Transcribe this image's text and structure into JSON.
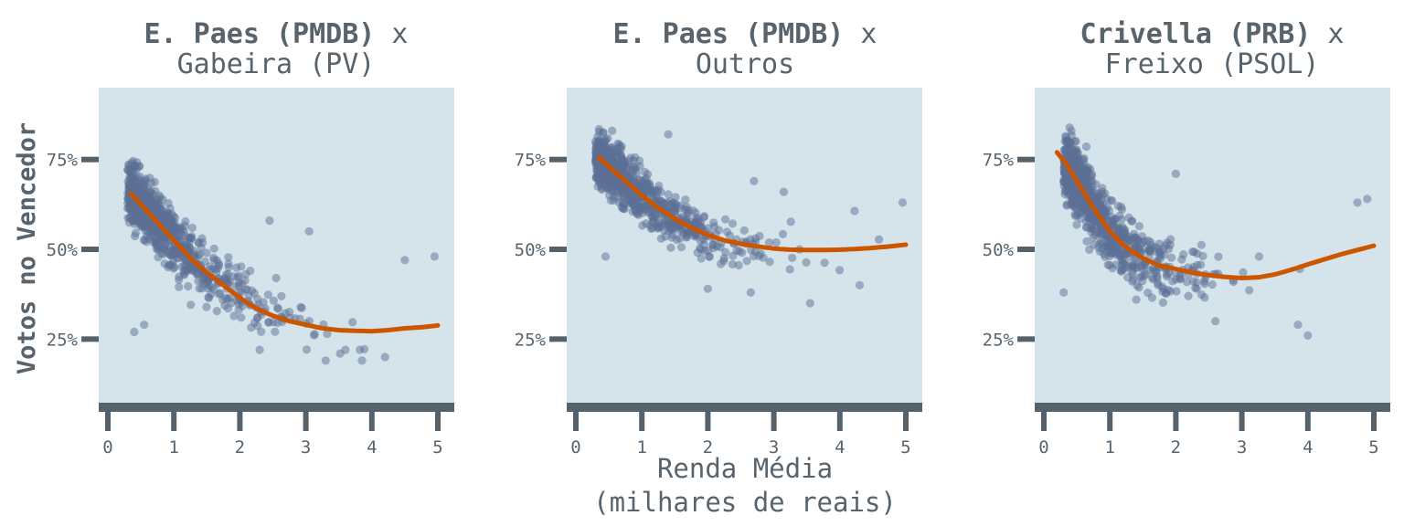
{
  "chart_data": [
    {
      "type": "scatter",
      "title": {
        "bold": "E. Paes (PMDB)",
        "normal": " x",
        "line2": "Gabeira (PV)"
      },
      "xlim": [
        0,
        5
      ],
      "ylim": [
        5,
        95
      ],
      "xticks": [
        "0",
        "1",
        "2",
        "3",
        "4",
        "5"
      ],
      "yticks": [
        "25%",
        "50%",
        "75%"
      ],
      "ytick_values": [
        25,
        50,
        75
      ],
      "trend": {
        "x": [
          0.35,
          0.5,
          0.75,
          1.0,
          1.25,
          1.5,
          1.75,
          2.0,
          2.25,
          2.5,
          2.75,
          3.0,
          3.25,
          3.5,
          3.75,
          4.0,
          4.25,
          4.5,
          4.75,
          5.0
        ],
        "y": [
          65.5,
          62.5,
          57.5,
          52.5,
          47.5,
          43.5,
          40.0,
          36.5,
          33.5,
          31.5,
          30.0,
          29.0,
          28.0,
          27.5,
          27.3,
          27.2,
          27.5,
          28.0,
          28.3,
          28.8
        ]
      },
      "cloud": {
        "seed": 11,
        "count": 850,
        "x0": 0.3,
        "xscale": 0.65,
        "xmax": 5.0,
        "spread": 5.5
      },
      "outliers": [
        [
          0.4,
          27
        ],
        [
          0.55,
          29
        ],
        [
          3.05,
          55
        ],
        [
          4.95,
          48
        ],
        [
          4.5,
          47
        ],
        [
          4.2,
          20
        ],
        [
          3.3,
          19
        ],
        [
          3.85,
          19
        ],
        [
          2.3,
          22
        ],
        [
          2.45,
          58
        ],
        [
          2.55,
          42
        ],
        [
          3.6,
          22
        ]
      ]
    },
    {
      "type": "scatter",
      "title": {
        "bold": "E. Paes (PMDB)",
        "normal": " x",
        "line2": "Outros"
      },
      "xlim": [
        0,
        5
      ],
      "ylim": [
        5,
        95
      ],
      "xticks": [
        "0",
        "1",
        "2",
        "3",
        "4",
        "5"
      ],
      "yticks": [
        "25%",
        "50%",
        "75%"
      ],
      "ytick_values": [
        25,
        50,
        75
      ],
      "trend": {
        "x": [
          0.35,
          0.5,
          0.75,
          1.0,
          1.25,
          1.5,
          1.75,
          2.0,
          2.25,
          2.5,
          2.75,
          3.0,
          3.25,
          3.5,
          3.75,
          4.0,
          4.25,
          4.5,
          4.75,
          5.0
        ],
        "y": [
          75.5,
          73.0,
          69.0,
          65.0,
          61.5,
          58.5,
          56.0,
          54.0,
          52.5,
          51.5,
          50.8,
          50.2,
          49.9,
          49.8,
          49.8,
          49.9,
          50.1,
          50.4,
          50.8,
          51.3
        ]
      },
      "cloud": {
        "seed": 23,
        "count": 850,
        "x0": 0.3,
        "xscale": 0.65,
        "xmax": 5.0,
        "spread": 5.0
      },
      "outliers": [
        [
          0.55,
          83
        ],
        [
          1.4,
          82
        ],
        [
          2.7,
          69
        ],
        [
          3.15,
          66
        ],
        [
          3.55,
          35
        ],
        [
          4.95,
          63
        ],
        [
          2.0,
          39
        ],
        [
          2.65,
          38
        ],
        [
          0.45,
          48
        ],
        [
          4.3,
          40
        ]
      ]
    },
    {
      "type": "scatter",
      "title": {
        "bold": "Crivella (PRB)",
        "normal": " x",
        "line2": "Freixo (PSOL)"
      },
      "xlim": [
        0,
        5
      ],
      "ylim": [
        5,
        95
      ],
      "xticks": [
        "0",
        "1",
        "2",
        "3",
        "4",
        "5"
      ],
      "yticks": [
        "25%",
        "50%",
        "75%"
      ],
      "ytick_values": [
        25,
        50,
        75
      ],
      "trend": {
        "x": [
          0.2,
          0.35,
          0.5,
          0.75,
          1.0,
          1.25,
          1.5,
          1.75,
          2.0,
          2.25,
          2.5,
          2.75,
          3.0,
          3.25,
          3.5,
          3.75,
          4.0,
          4.25,
          4.5,
          4.75,
          5.0
        ],
        "y": [
          77.0,
          73.5,
          69.0,
          61.5,
          55.0,
          50.5,
          47.5,
          45.5,
          44.5,
          43.5,
          42.8,
          42.3,
          42.0,
          42.2,
          43.0,
          44.3,
          45.8,
          47.2,
          48.6,
          49.8,
          51.0
        ]
      },
      "cloud": {
        "seed": 37,
        "count": 850,
        "x0": 0.3,
        "xscale": 0.6,
        "xmax": 5.0,
        "spread": 6.5
      },
      "outliers": [
        [
          0.3,
          38
        ],
        [
          2.0,
          71
        ],
        [
          4.0,
          26
        ],
        [
          4.9,
          64
        ],
        [
          4.75,
          63
        ],
        [
          3.85,
          29
        ],
        [
          1.4,
          36
        ],
        [
          2.6,
          30
        ]
      ]
    }
  ],
  "ylabel": "Votos no Vencedor",
  "xlabel": {
    "line1": "Renda Média",
    "line2": "(milhares de reais)"
  },
  "colors": {
    "panel_bg": "#d4e4ea",
    "axis": "#55626b",
    "text": "#58636b",
    "points": "#5b6f96",
    "trend": "#cc5500"
  }
}
